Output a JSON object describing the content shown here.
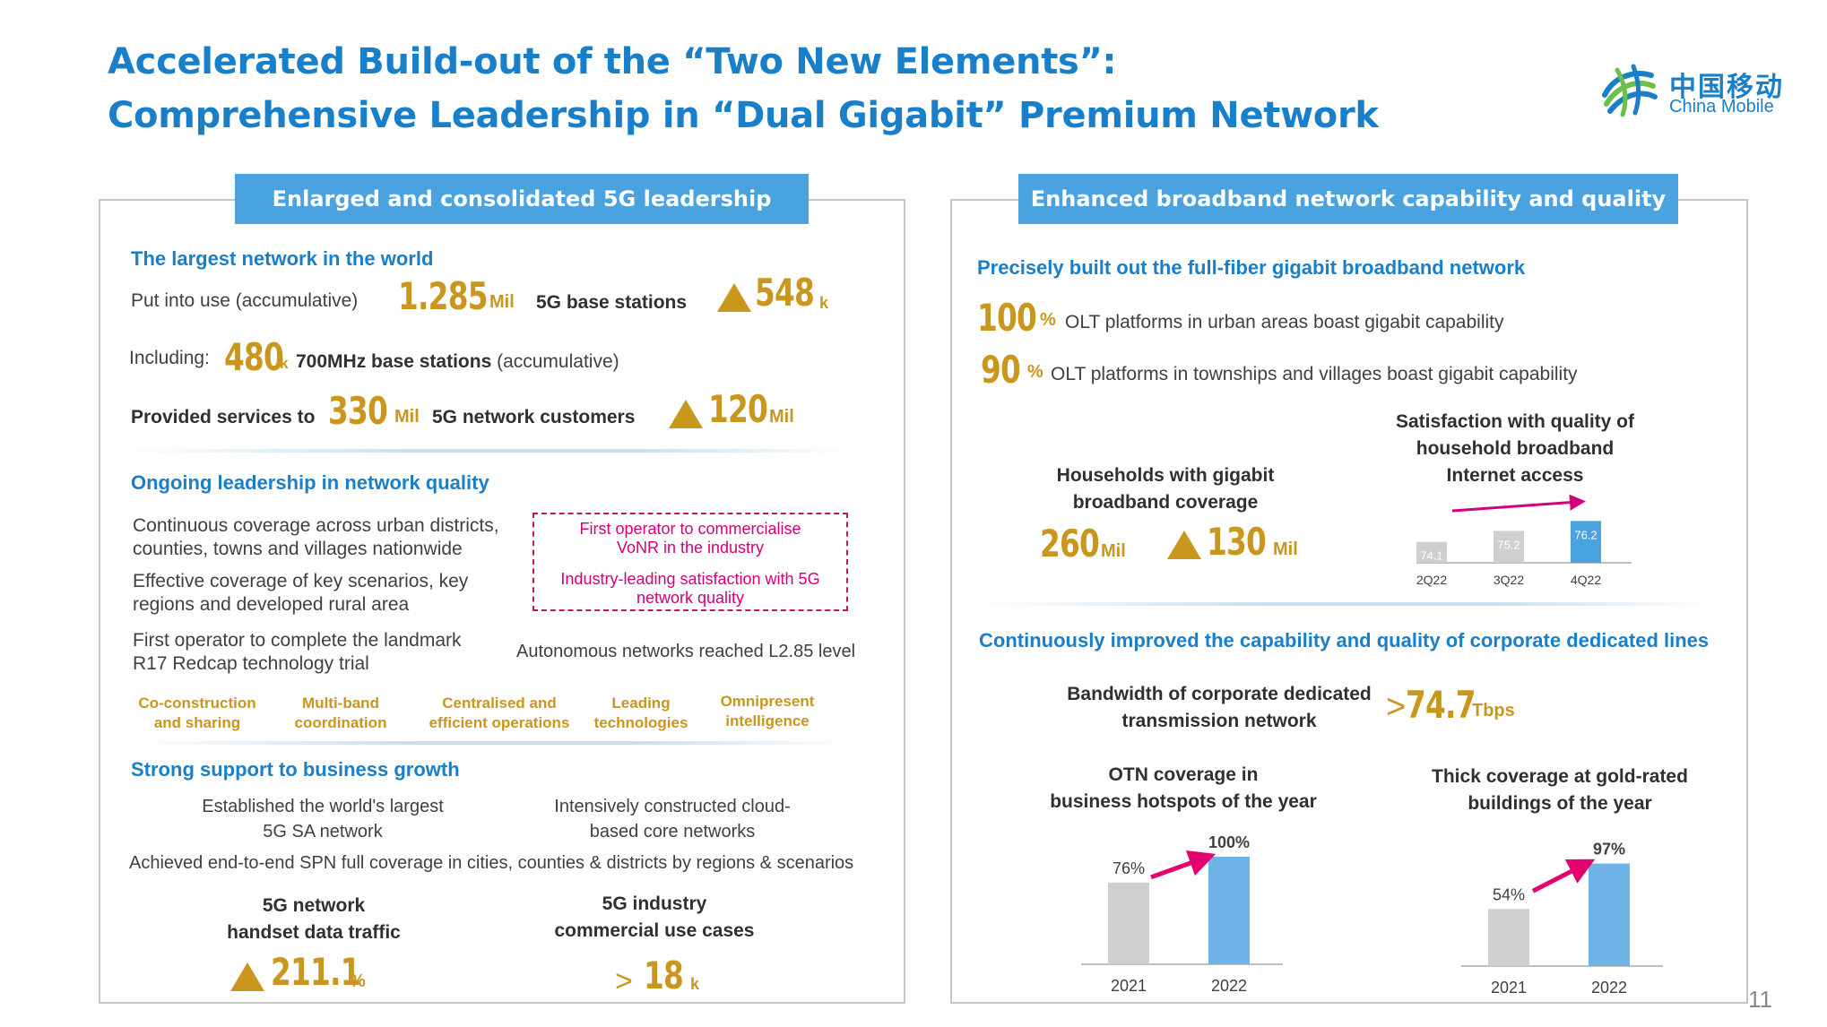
{
  "title": {
    "line1": "Accelerated Build-out of the “Two New Elements”:",
    "line2": "Comprehensive Leadership in “Dual Gigabit” Premium Network"
  },
  "logo": {
    "cn": "中国移动",
    "en": "China Mobile",
    "icon": "china-mobile-logo-icon"
  },
  "page_number": "11",
  "left": {
    "header": "Enlarged and consolidated 5G leadership",
    "s1": {
      "title": "The largest network in the world",
      "r1": {
        "label": "Put into use (accumulative)",
        "value": "1.285",
        "unit": "Mil",
        "desc": "5G base stations",
        "inc_value": "548",
        "inc_unit": "k"
      },
      "r2": {
        "label": "Including:",
        "value": "480",
        "unit": "k",
        "desc_bold": "700MHz base stations",
        "desc": " (accumulative)"
      },
      "r3": {
        "label": "Provided services to",
        "value": "330",
        "unit": "Mil",
        "desc": "5G network customers",
        "inc_value": "120",
        "inc_unit": "Mil"
      }
    },
    "s2": {
      "title": "Ongoing leadership in network quality",
      "items": [
        [
          "Continuous coverage across urban districts,",
          "counties, towns and villages nationwide"
        ],
        [
          "Effective  coverage  of  key  scenarios,  key",
          "regions and developed rural area"
        ],
        [
          "First operator to complete the landmark",
          "R17 Redcap technology trial"
        ]
      ],
      "box": [
        [
          "First operator to commercialise",
          "VoNR in the industry"
        ],
        [
          "Industry-leading satisfaction with 5G",
          "network quality"
        ]
      ],
      "autonomous": "Autonomous networks reached L2.85 level",
      "pillars": [
        [
          "Co-construction",
          "and sharing"
        ],
        [
          "Multi-band",
          "coordination"
        ],
        [
          "Centralised and",
          "efficient operations"
        ],
        [
          "Leading",
          "technologies"
        ],
        [
          "Omnipresent",
          "intelligence"
        ]
      ]
    },
    "s3": {
      "title": "Strong support to business growth",
      "c1": [
        "Established the world's largest",
        "5G SA network"
      ],
      "c2": [
        "Intensively constructed cloud-",
        "based core networks"
      ],
      "spn": "Achieved end-to-end SPN full coverage in cities, counties & districts by regions & scenarios",
      "k1": {
        "label": [
          "5G network",
          "handset data traffic"
        ],
        "value": "211.1",
        "unit": "%"
      },
      "k2": {
        "label": [
          "5G industry",
          "commercial use cases"
        ],
        "prefix": ">",
        "value": "18",
        "unit": "k"
      }
    }
  },
  "right": {
    "header": "Enhanced broadband network capability and quality",
    "s1": {
      "title": "Precisely built out the full-fiber gigabit broadband network",
      "r1": {
        "value": "100",
        "unit": "%",
        "desc": "OLT platforms in urban areas boast gigabit capability"
      },
      "r2": {
        "value": "90",
        "unit": "%",
        "desc": "OLT platforms in townships and villages boast gigabit capability"
      },
      "households": {
        "label": [
          "Households with gigabit",
          "broadband coverage"
        ],
        "value": "260",
        "unit": "Mil",
        "inc_value": "130",
        "inc_unit": "Mil"
      },
      "satisfaction": {
        "label": [
          "Satisfaction with quality of",
          "household broadband",
          "Internet access"
        ],
        "chart_data": {
          "type": "bar",
          "categories": [
            "2Q22",
            "3Q22",
            "4Q22"
          ],
          "values": [
            74.1,
            75.2,
            76.2
          ],
          "data_labels": [
            "74.1",
            "75.2",
            "76.2"
          ],
          "colors": [
            "#cfcfcf",
            "#cfcfcf",
            "#4aa3df"
          ]
        }
      }
    },
    "s2": {
      "title": "Continuously improved the capability and quality of corporate dedicated lines",
      "bandwidth": {
        "label": [
          "Bandwidth of corporate dedicated",
          "transmission network"
        ],
        "prefix": ">",
        "value": "74.7",
        "unit": "Tbps"
      },
      "otn": {
        "label": [
          "OTN coverage in",
          "business hotspots of the year"
        ],
        "chart_data": {
          "type": "bar",
          "categories": [
            "2021",
            "2022"
          ],
          "values": [
            76,
            100
          ],
          "data_labels": [
            "76%",
            "100%"
          ],
          "colors": [
            "#cfcfcf",
            "#6fb4e6"
          ]
        }
      },
      "thick": {
        "label": [
          "Thick coverage at gold-rated",
          "buildings of the year"
        ],
        "chart_data": {
          "type": "bar",
          "categories": [
            "2021",
            "2022"
          ],
          "values": [
            54,
            97
          ],
          "data_labels": [
            "54%",
            "97%"
          ],
          "colors": [
            "#cfcfcf",
            "#6fb4e6"
          ]
        }
      }
    }
  }
}
